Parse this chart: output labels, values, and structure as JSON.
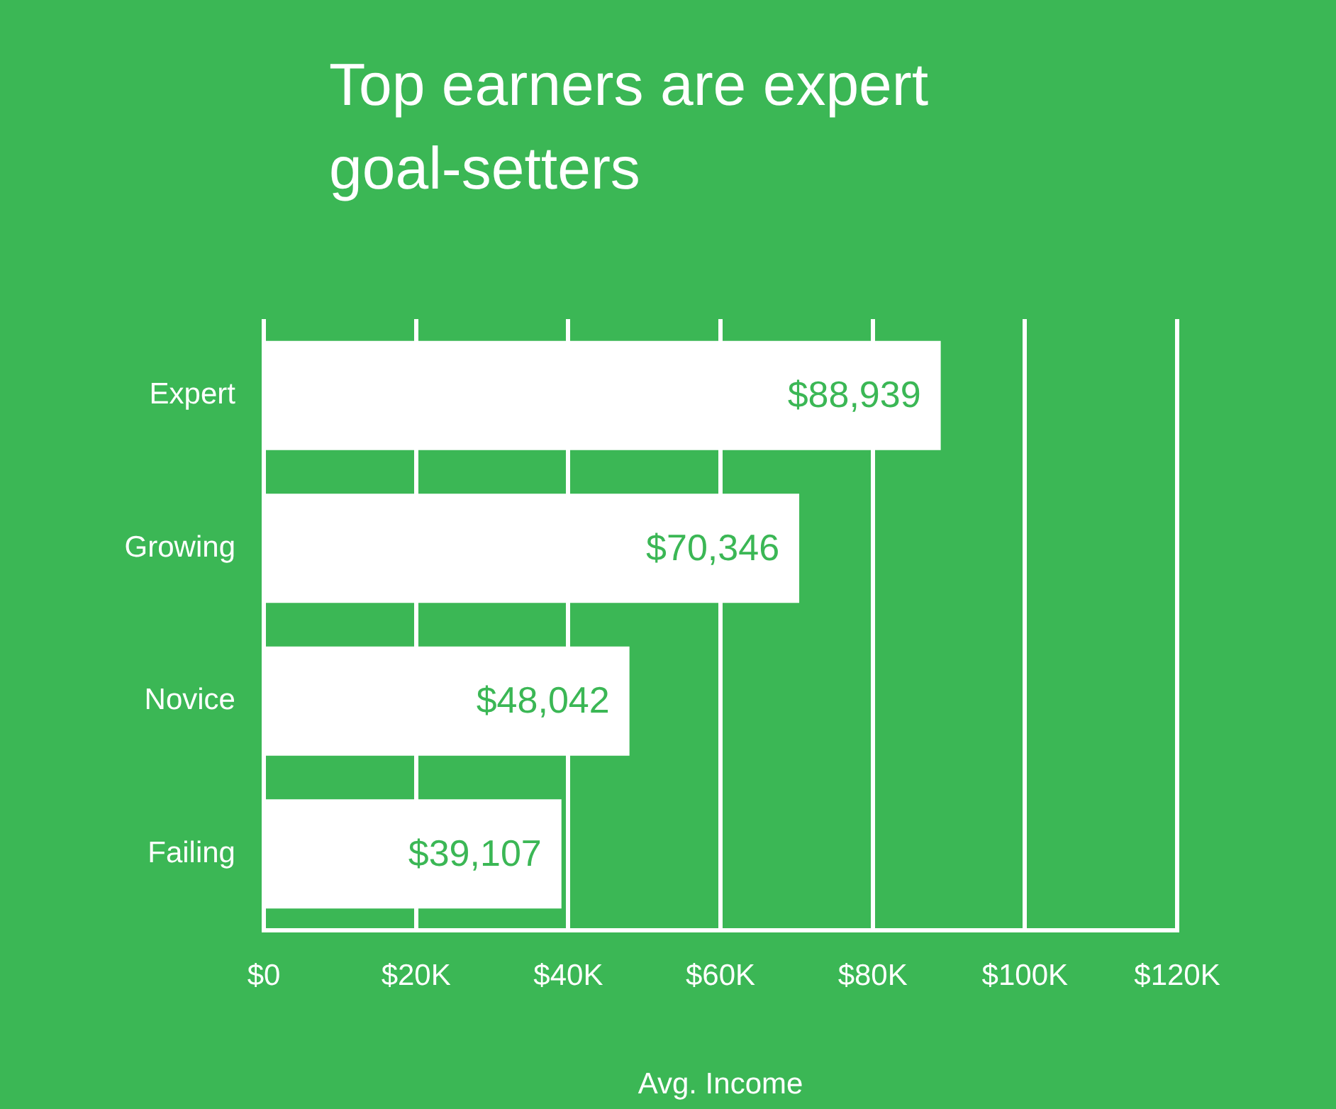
{
  "chart_data": {
    "type": "bar",
    "orientation": "horizontal",
    "title": "Top earners are expert goal-setters",
    "xlabel": "Avg. Income",
    "categories": [
      "Expert",
      "Growing",
      "Novice",
      "Failing"
    ],
    "values": [
      88939,
      70346,
      48042,
      39107
    ],
    "value_labels": [
      "$88,939",
      "$70,346",
      "$48,042",
      "$39,107"
    ],
    "color": "#ffffff",
    "xlim": [
      0,
      120000
    ],
    "xticks": [
      {
        "value": 0,
        "label": "$0"
      },
      {
        "value": 20000,
        "label": "$20K"
      },
      {
        "value": 40000,
        "label": "$40K"
      },
      {
        "value": 60000,
        "label": "$60K"
      },
      {
        "value": 80000,
        "label": "$80K"
      },
      {
        "value": 100000,
        "label": "$100K"
      },
      {
        "value": 120000,
        "label": "$120K"
      }
    ],
    "grid": "x"
  }
}
